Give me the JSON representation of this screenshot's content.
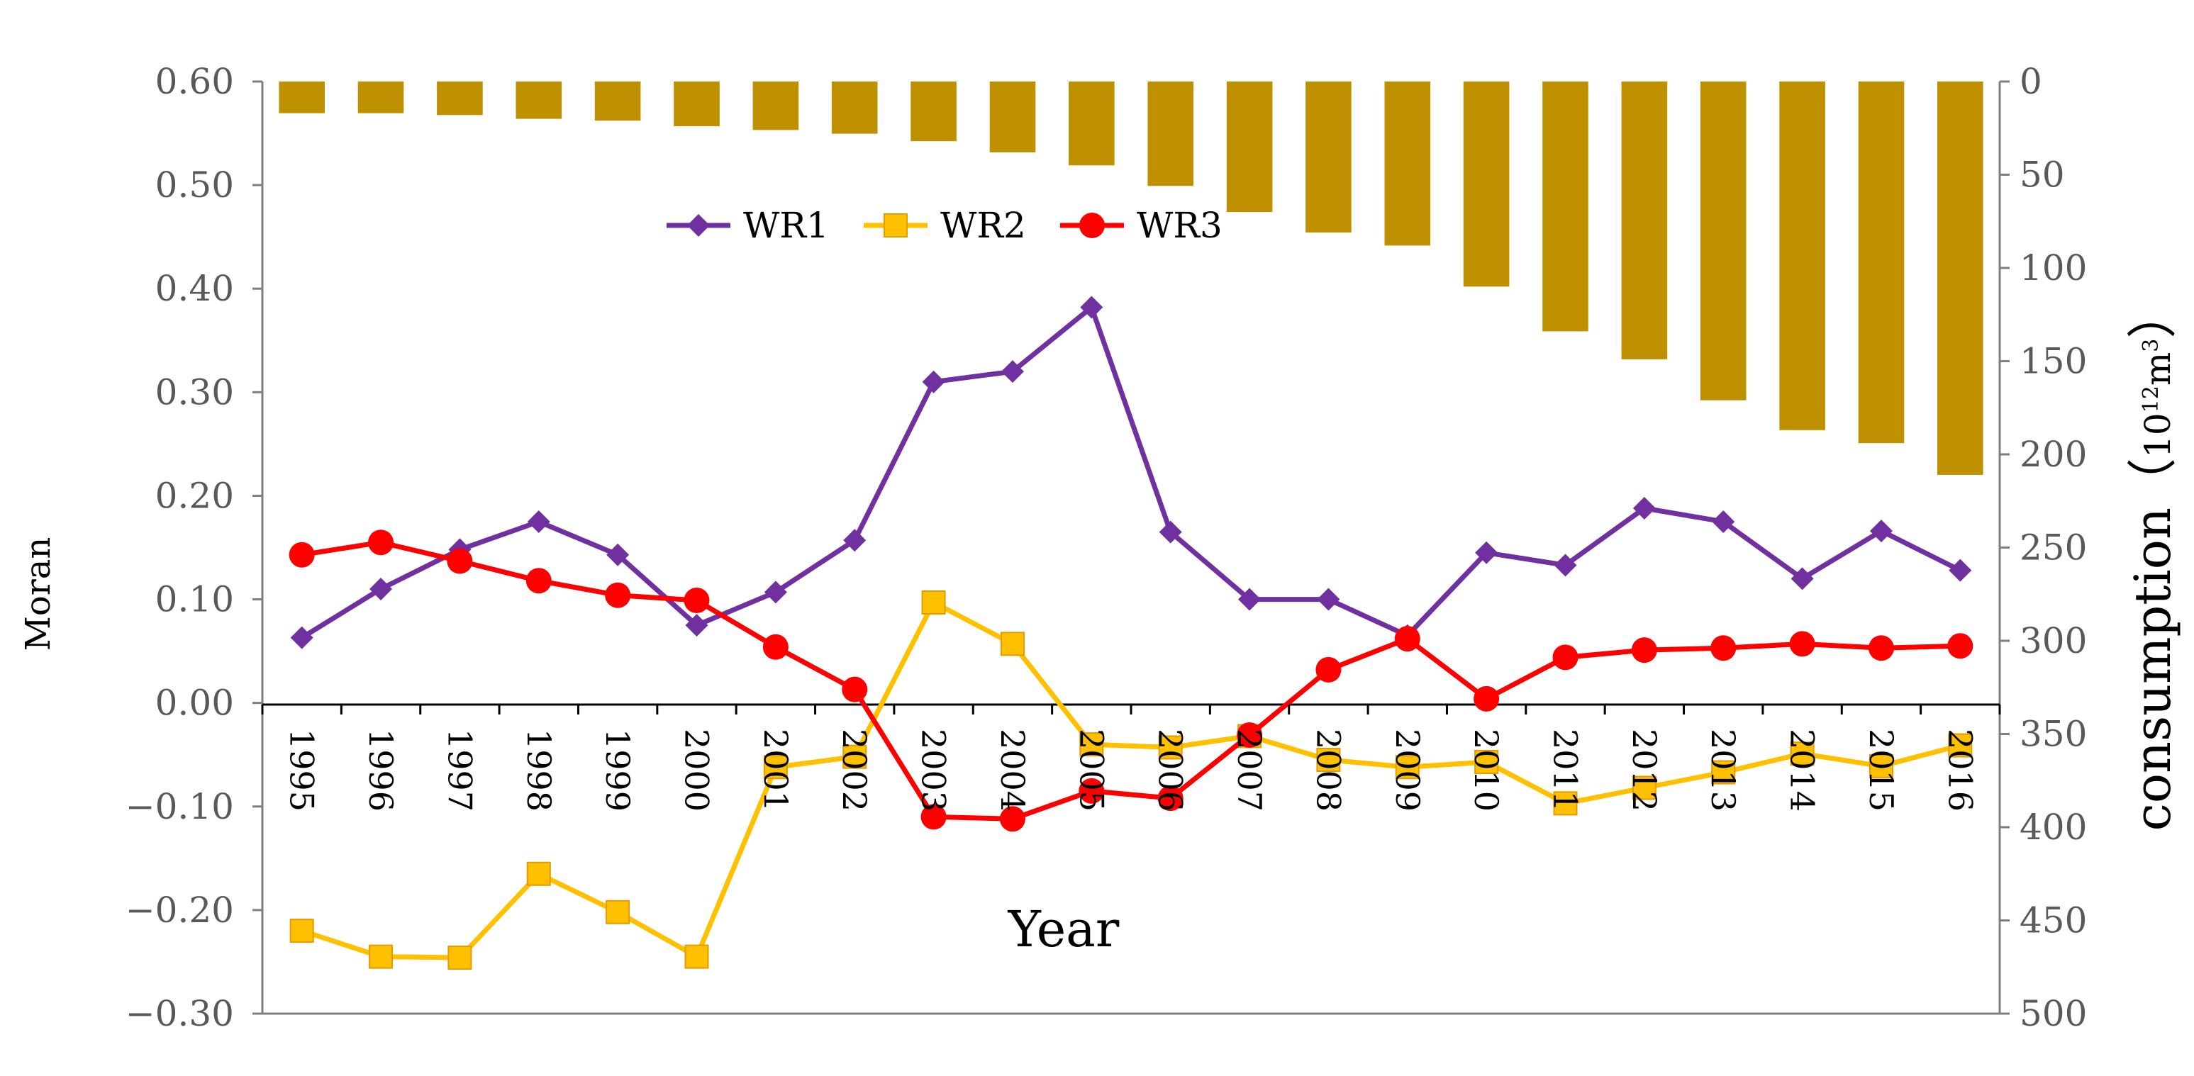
{
  "chart_data": {
    "type": "bar+line",
    "xlabel": "Year",
    "ylabel_left": "Moran",
    "ylabel_right_prefix": "consumption（",
    "ylabel_right_base": "10",
    "ylabel_right_exp1": "12",
    "ylabel_right_unit": "m",
    "ylabel_right_exp2": "3",
    "ylabel_right_suffix": "）",
    "categories": [
      "1995",
      "1996",
      "1997",
      "1998",
      "1999",
      "2000",
      "2001",
      "2002",
      "2003",
      "2004",
      "2005",
      "2006",
      "2007",
      "2008",
      "2009",
      "2010",
      "2011",
      "2012",
      "2013",
      "2014",
      "2015",
      "2016"
    ],
    "left_axis": {
      "range": [
        -0.3,
        0.6
      ],
      "ticks": [
        0.6,
        0.5,
        0.4,
        0.3,
        0.2,
        0.1,
        0.0,
        -0.1,
        -0.2,
        -0.3
      ],
      "tick_labels": [
        "0.60",
        "0.50",
        "0.40",
        "0.30",
        "0.20",
        "0.10",
        "0.00",
        "−0.10",
        "−0.20",
        "−0.30"
      ]
    },
    "right_axis": {
      "range": [
        0,
        500
      ],
      "inverted": true,
      "ticks": [
        0,
        50,
        100,
        150,
        200,
        250,
        300,
        350,
        400,
        450,
        500
      ],
      "tick_labels": [
        "0",
        "50",
        "100",
        "150",
        "200",
        "250",
        "300",
        "350",
        "400",
        "450",
        "500"
      ]
    },
    "bars": {
      "name": "consumption",
      "axis": "right",
      "color": "#bf9000",
      "values": [
        17,
        17,
        18,
        20,
        21,
        24,
        26,
        28,
        32,
        38,
        45,
        56,
        70,
        81,
        88,
        110,
        134,
        149,
        171,
        187,
        194,
        211
      ]
    },
    "series": [
      {
        "name": "WR1",
        "color": "#7030a0",
        "marker": "diamond",
        "values": [
          0.063,
          0.11,
          0.148,
          0.175,
          0.143,
          0.075,
          0.107,
          0.157,
          0.31,
          0.32,
          0.382,
          0.165,
          0.1,
          0.1,
          0.065,
          0.145,
          0.133,
          0.188,
          0.175,
          0.12,
          0.166,
          0.128
        ]
      },
      {
        "name": "WR2",
        "color": "#ffc000",
        "marker": "square",
        "values": [
          -0.22,
          -0.245,
          -0.246,
          -0.165,
          -0.202,
          -0.245,
          -0.062,
          -0.052,
          0.097,
          0.057,
          -0.04,
          -0.043,
          -0.032,
          -0.055,
          -0.062,
          -0.057,
          -0.097,
          -0.082,
          -0.067,
          -0.049,
          -0.061,
          -0.041
        ]
      },
      {
        "name": "WR3",
        "color": "#ff0000",
        "marker": "circle",
        "values": [
          0.143,
          0.155,
          0.137,
          0.118,
          0.104,
          0.099,
          0.054,
          0.013,
          -0.11,
          -0.112,
          -0.085,
          -0.092,
          -0.031,
          0.032,
          0.062,
          0.004,
          0.044,
          0.051,
          0.053,
          0.057,
          0.053,
          0.055
        ]
      }
    ],
    "legend_position": "top-center"
  }
}
